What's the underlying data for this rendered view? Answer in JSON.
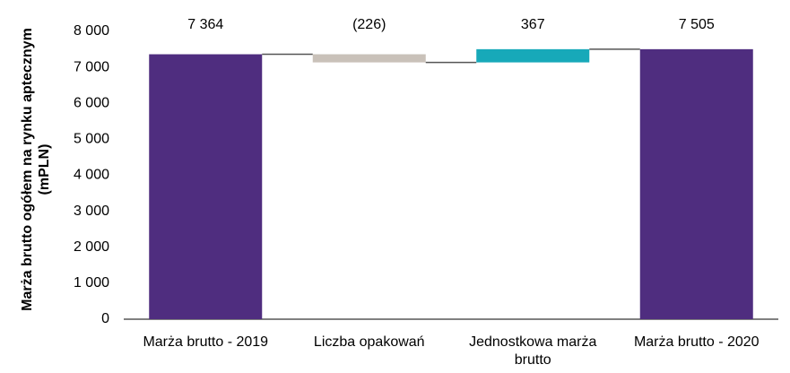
{
  "chart_data": {
    "type": "waterfall",
    "y_label": "Marża brutto ogółem na rynku aptecznym (mPLN)",
    "categories": [
      "Marża brutto - 2019",
      "Liczba opakowań",
      "Jednostkowa marża brutto",
      "Marża brutto - 2020"
    ],
    "values": [
      7364,
      -226,
      367,
      7505
    ],
    "value_labels": [
      "7 364",
      "(226)",
      "367",
      "7 505"
    ],
    "colors": [
      "#4f2d7f",
      "#c9c1b9",
      "#17a9b9",
      "#4f2d7f"
    ],
    "ylim": [
      0,
      8000
    ],
    "yticks": [
      0,
      {
        "value": 1000,
        "label": "1 000"
      },
      {
        "value": 2000,
        "label": "2 000"
      },
      {
        "value": 3000,
        "label": "3 000"
      },
      {
        "value": 4000,
        "label": "4 000"
      },
      {
        "value": 5000,
        "label": "5 000"
      },
      {
        "value": 6000,
        "label": "6 000"
      },
      {
        "value": 7000,
        "label": "7 000"
      },
      {
        "value": 8000,
        "label": "8 000"
      }
    ],
    "grid": false
  }
}
